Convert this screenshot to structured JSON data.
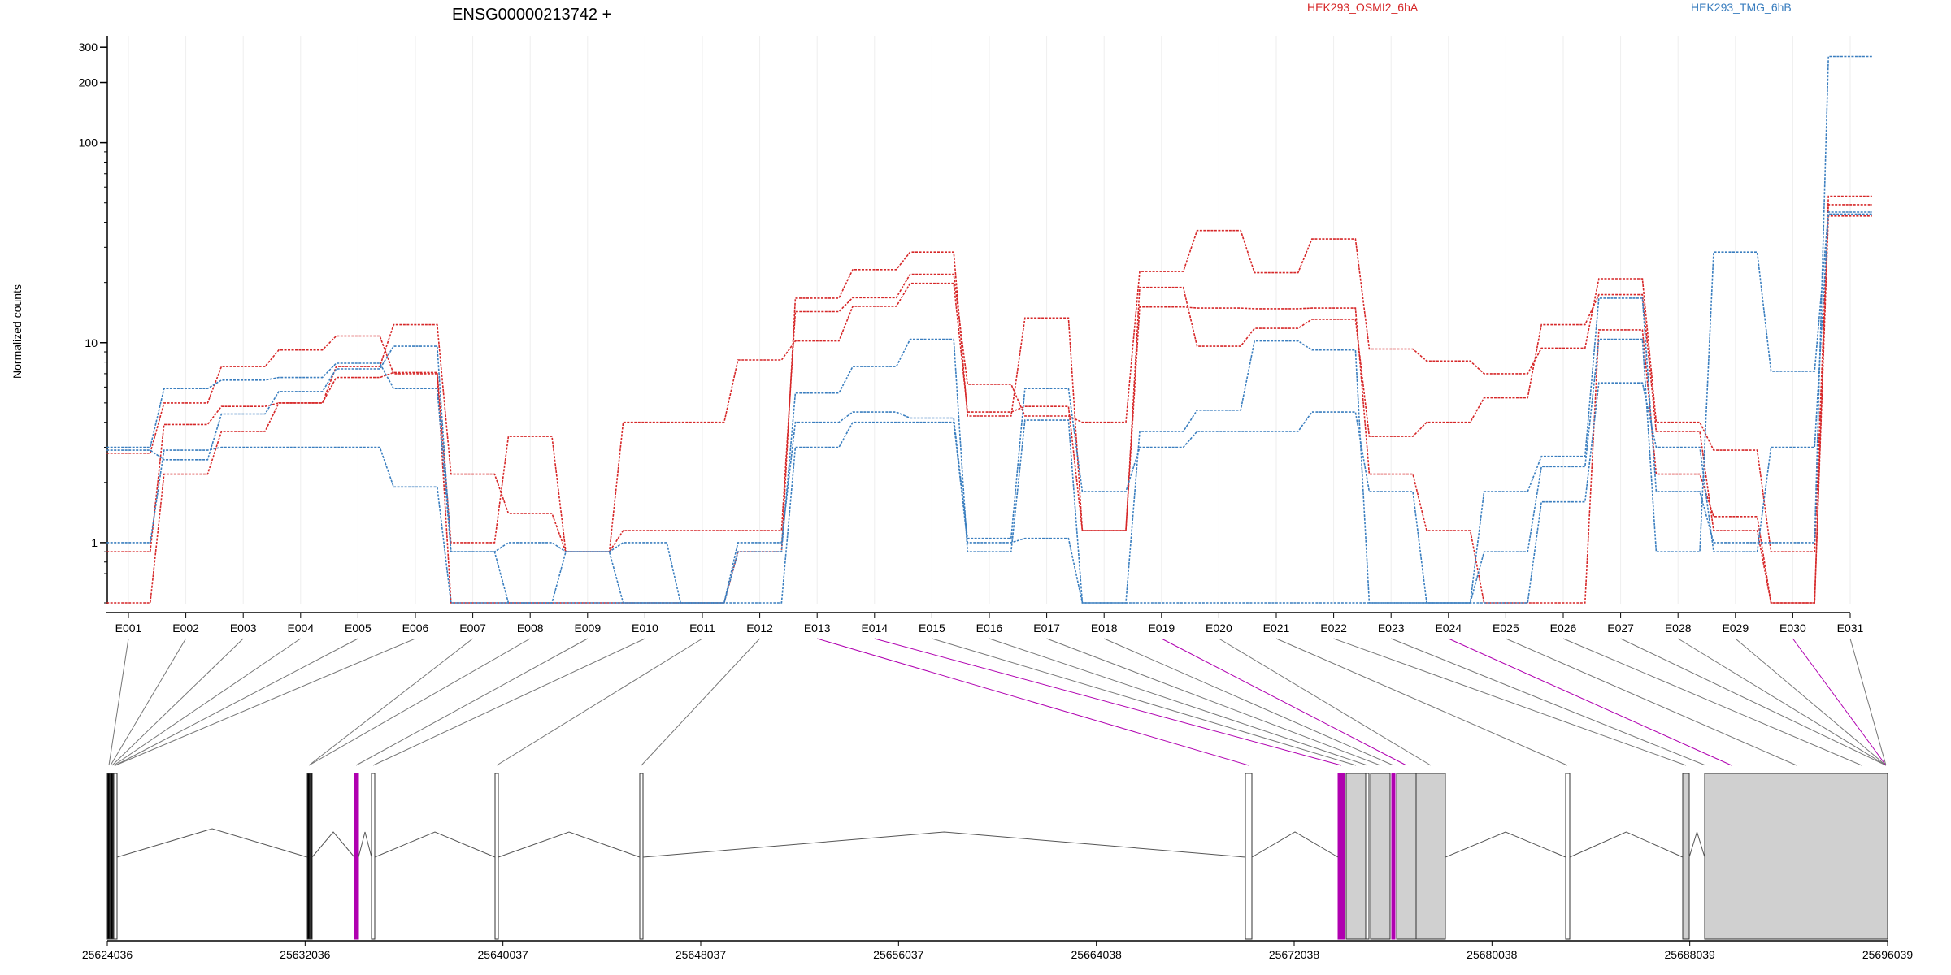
{
  "chart_data": {
    "type": "line",
    "title": "ENSG00000213742 +",
    "ylabel": "Normalized counts",
    "xlabel": "",
    "yscale": "log",
    "ylim": [
      0.5,
      330
    ],
    "y_ticks": [
      1,
      10,
      100,
      200,
      300
    ],
    "grid": "vertical",
    "legend": [
      {
        "name": "HEK293_OSMI2_6hA",
        "color": "#d62728"
      },
      {
        "name": "HEK293_TMG_6hB",
        "color": "#3a7ebf"
      }
    ],
    "categories": [
      "E001",
      "E002",
      "E003",
      "E004",
      "E005",
      "E006",
      "E007",
      "E008",
      "E009",
      "E010",
      "E011",
      "E012",
      "E013",
      "E014",
      "E015",
      "E016",
      "E017",
      "E018",
      "E019",
      "E020",
      "E021",
      "E022",
      "E023",
      "E024",
      "E025",
      "E026",
      "E027",
      "E028",
      "E029",
      "E030",
      "E031"
    ],
    "series": [
      {
        "group": "HEK293_OSMI2_6hA",
        "color": "#d62728",
        "values": [
          0.5,
          2.2,
          3.6,
          5,
          6.7,
          7.1,
          1.0,
          3.4,
          0.9,
          4.0,
          4.0,
          8.2,
          10.2,
          15.2,
          19.8,
          4.5,
          4.8,
          1.15,
          15.1,
          14.9,
          14.8,
          14.9,
          2.2,
          1.15,
          0.5,
          0.5,
          11.6,
          2.2,
          1.35,
          0.5,
          43
        ]
      },
      {
        "group": "HEK293_OSMI2_6hA",
        "color": "#d62728",
        "values": [
          0.9,
          3.9,
          4.8,
          5.0,
          7.6,
          12.3,
          2.2,
          1.4,
          0.9,
          1.15,
          1.15,
          1.15,
          14.3,
          16.8,
          22.0,
          6.2,
          4.3,
          4.0,
          22.7,
          36.4,
          22.4,
          33.0,
          9.3,
          8.1,
          7.0,
          9.4,
          20.9,
          4.0,
          2.9,
          0.9,
          49
        ]
      },
      {
        "group": "HEK293_OSMI2_6hA",
        "color": "#d62728",
        "values": [
          2.8,
          5.0,
          7.6,
          9.2,
          10.8,
          7.0,
          0.5,
          0.5,
          0.5,
          0.5,
          0.5,
          0.9,
          16.7,
          23.2,
          28.4,
          4.3,
          13.3,
          1.15,
          18.9,
          9.6,
          11.8,
          13.1,
          3.4,
          4.0,
          5.3,
          12.3,
          17.4,
          3.6,
          1.15,
          0.5,
          54
        ]
      },
      {
        "group": "HEK293_TMG_6hB",
        "color": "#3a7ebf",
        "values": [
          3.0,
          5.9,
          6.5,
          6.7,
          7.9,
          5.9,
          0.9,
          1.0,
          0.9,
          1.0,
          0.5,
          1.0,
          4.0,
          4.5,
          4.2,
          1.05,
          5.9,
          1.8,
          3.0,
          3.6,
          3.6,
          4.5,
          1.8,
          0.5,
          1.8,
          2.7,
          16.7,
          1.8,
          1.0,
          1.0,
          270
        ]
      },
      {
        "group": "HEK293_TMG_6hB",
        "color": "#3a7ebf",
        "values": [
          2.9,
          2.6,
          4.4,
          5.7,
          7.4,
          9.6,
          0.9,
          0.5,
          0.9,
          0.5,
          0.5,
          0.9,
          5.6,
          7.6,
          10.4,
          0.9,
          4.1,
          0.5,
          3.6,
          4.6,
          10.2,
          9.2,
          0.5,
          0.5,
          0.9,
          2.4,
          10.4,
          0.9,
          28.4,
          7.2,
          45
        ]
      },
      {
        "group": "HEK293_TMG_6hB",
        "color": "#3a7ebf",
        "values": [
          1.0,
          2.9,
          3.0,
          3.0,
          3.0,
          1.9,
          0.5,
          0.5,
          0.5,
          0.5,
          0.5,
          0.5,
          3.0,
          4.0,
          4.0,
          1.0,
          1.05,
          0.5,
          0.5,
          0.5,
          0.5,
          0.5,
          0.5,
          0.5,
          0.5,
          1.6,
          6.3,
          3.0,
          0.9,
          3.0,
          44
        ]
      }
    ],
    "gene_model": {
      "genomic_ticks": [
        "25624036",
        "25632036",
        "25640037",
        "25648037",
        "25656037",
        "25664038",
        "25672038",
        "25680038",
        "25688039",
        "25696039"
      ],
      "highlight_color": "#b000b0",
      "exon_fill": "#d0d0d0",
      "highlighted_exons": [
        "E013",
        "E014",
        "E019",
        "E024",
        "E030"
      ]
    }
  }
}
